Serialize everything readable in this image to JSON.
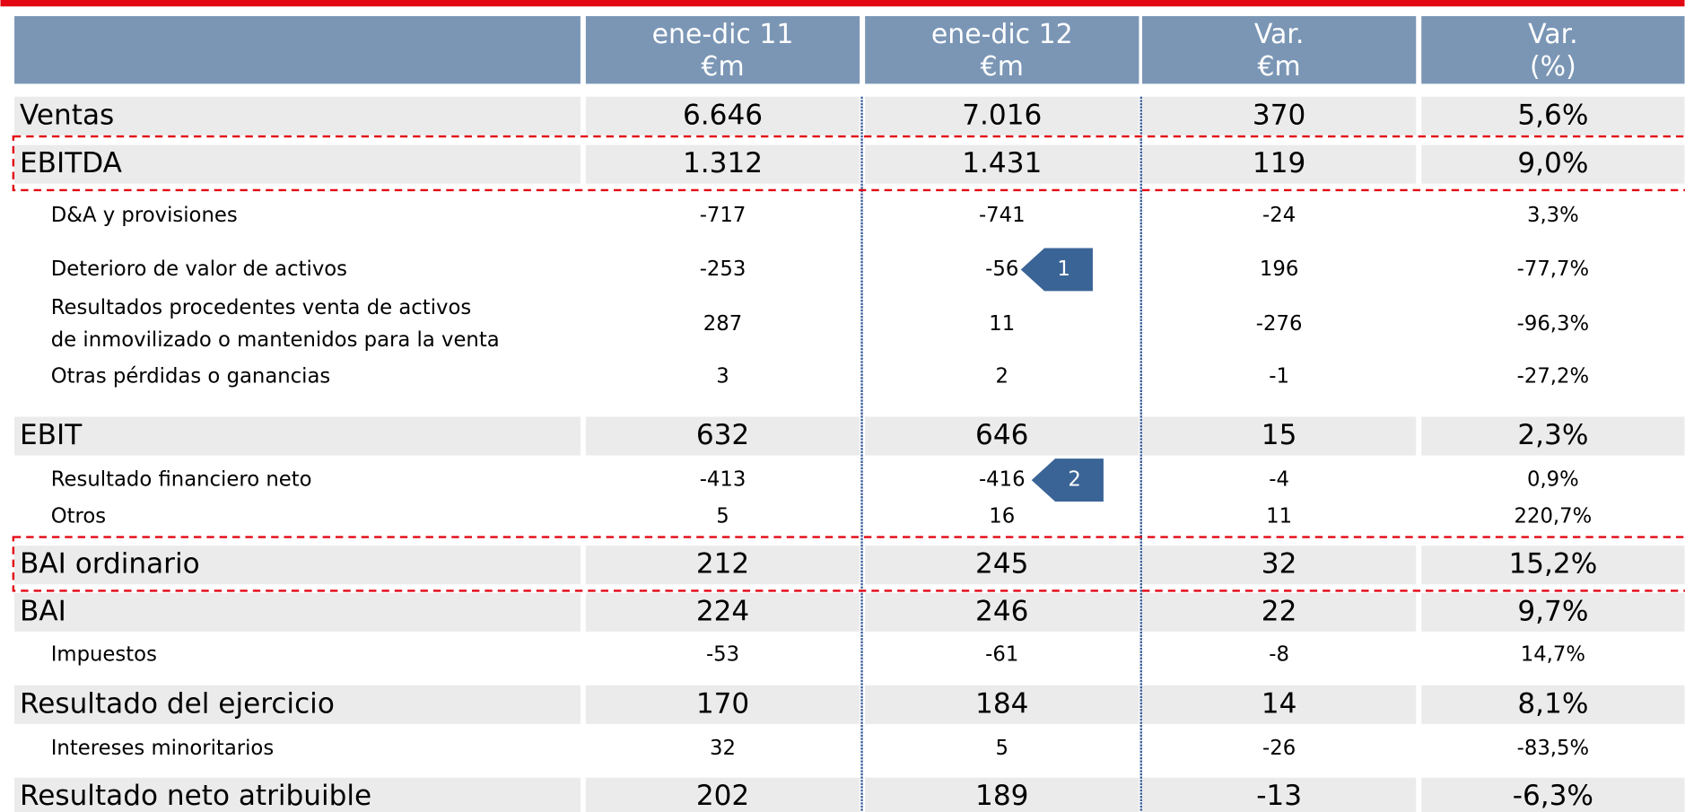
{
  "table": {
    "header": [
      [
        "ene-dic 11",
        "€m"
      ],
      [
        "ene-dic 12",
        "€m"
      ],
      [
        "Var.",
        "€m"
      ],
      [
        "Var.",
        "(%)"
      ]
    ],
    "rows": [
      [
        "Ventas",
        "6.646",
        "7.016",
        "370",
        "5,6%"
      ],
      [
        "EBITDA",
        "1.312",
        "1.431",
        "119",
        "9,0%"
      ],
      [
        "D&A y provisiones",
        "-717",
        "-741",
        "-24",
        "3,3%"
      ],
      [
        "Deterioro de valor de activos",
        "-253",
        "-56",
        "196",
        "-77,7%"
      ],
      [
        [
          "Resultados procedentes venta de activos",
          "de inmovilizado o mantenidos para la venta"
        ],
        "287",
        "11",
        "-276",
        "-96,3%"
      ],
      [
        "Otras pérdidas o ganancias",
        "3",
        "2",
        "-1",
        "-27,2%"
      ],
      [
        "EBIT",
        "632",
        "646",
        "15",
        "2,3%"
      ],
      [
        "Resultado financiero neto",
        "-413",
        "-416",
        "-4",
        "0,9%"
      ],
      [
        "Otros",
        "5",
        "16",
        "11",
        "220,7%"
      ],
      [
        "BAI ordinario",
        "212",
        "245",
        "32",
        "15,2%"
      ],
      [
        "BAI",
        "224",
        "246",
        "22",
        "9,7%"
      ],
      [
        "Impuestos",
        "-53",
        "-61",
        "-8",
        "14,7%"
      ],
      [
        "Resultado del ejercicio",
        "170",
        "184",
        "14",
        "8,1%"
      ],
      [
        "Intereses minoritarios",
        "32",
        "5",
        "-26",
        "-83,5%"
      ],
      [
        "Resultado neto atribuible",
        "202",
        "189",
        "-13",
        "-6,3%"
      ]
    ],
    "callouts": [
      "1",
      "2"
    ]
  }
}
